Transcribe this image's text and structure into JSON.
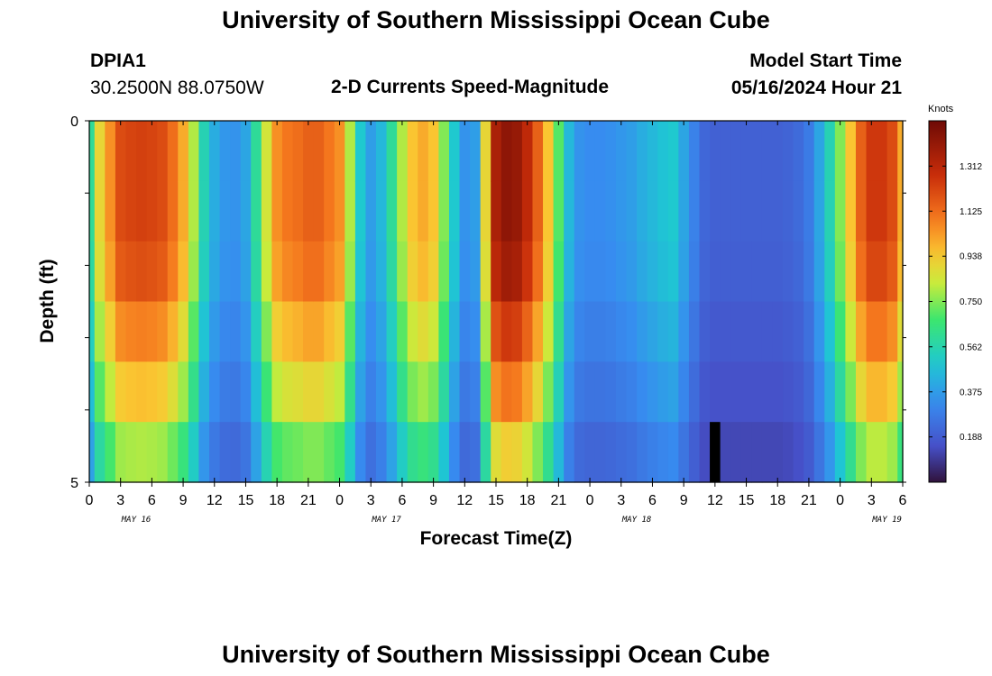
{
  "header": {
    "title": "University of Southern Mississippi Ocean Cube",
    "footer_title": "University of Southern Mississippi Ocean Cube",
    "station_id": "DPIA1",
    "station_coords": "30.2500N  88.0750W",
    "plot_subtitle": "2-D Currents Speed-Magnitude",
    "model_start_label": "Model Start Time",
    "model_start_value": "05/16/2024 Hour 21"
  },
  "chart_data": {
    "type": "heatmap",
    "title": "2-D Currents Speed-Magnitude",
    "xlabel": "Forecast Time(Z)",
    "ylabel": "Depth (ft)",
    "colorbar_label": "Knots",
    "colorbar_ticks": [
      "1.312",
      "1.125",
      "0.938",
      "0.750",
      "0.562",
      "0.375",
      "0.188"
    ],
    "colorbar_tick_values": [
      1.312,
      1.125,
      0.938,
      0.75,
      0.562,
      0.375,
      0.188
    ],
    "value_range": [
      0.0,
      1.5
    ],
    "x_tick_labels": [
      "0",
      "3",
      "6",
      "9",
      "12",
      "15",
      "18",
      "21",
      "0",
      "3",
      "6",
      "9",
      "12",
      "15",
      "18",
      "21",
      "0",
      "3",
      "6",
      "9",
      "12",
      "15",
      "18",
      "21",
      "0",
      "3",
      "6"
    ],
    "day_labels": [
      {
        "label": "MAY 16",
        "hour": 4.5
      },
      {
        "label": "MAY 17",
        "hour": 28.5
      },
      {
        "label": "MAY 18",
        "hour": 52.5
      },
      {
        "label": "MAY 19",
        "hour": 76.5
      }
    ],
    "x_range_hours": [
      0,
      78
    ],
    "y_tick_labels": [
      "0",
      "5"
    ],
    "ylim": [
      0,
      5
    ],
    "depth_layers": 5,
    "hours": [
      0,
      1,
      2,
      3,
      4,
      5,
      6,
      7,
      8,
      9,
      10,
      11,
      12,
      13,
      14,
      15,
      16,
      17,
      18,
      19,
      20,
      21,
      22,
      23,
      24,
      25,
      26,
      27,
      28,
      29,
      30,
      31,
      32,
      33,
      34,
      35,
      36,
      37,
      38,
      39,
      40,
      41,
      42,
      43,
      44,
      45,
      46,
      47,
      48,
      49,
      50,
      51,
      52,
      53,
      54,
      55,
      56,
      57,
      58,
      59,
      60,
      61,
      62,
      63,
      64,
      65,
      66,
      67,
      68,
      69,
      70,
      71,
      72,
      73,
      74,
      75,
      76,
      77,
      78
    ],
    "surface_speed": [
      0.6,
      0.9,
      1.05,
      1.2,
      1.22,
      1.23,
      1.22,
      1.2,
      1.12,
      1.0,
      0.8,
      0.55,
      0.42,
      0.36,
      0.35,
      0.4,
      0.6,
      0.85,
      1.05,
      1.1,
      1.12,
      1.15,
      1.15,
      1.1,
      1.05,
      0.8,
      0.5,
      0.38,
      0.45,
      0.6,
      0.8,
      0.95,
      1.0,
      0.95,
      0.75,
      0.5,
      0.35,
      0.38,
      0.9,
      1.35,
      1.42,
      1.4,
      1.3,
      1.15,
      0.95,
      0.7,
      0.45,
      0.35,
      0.33,
      0.33,
      0.34,
      0.36,
      0.38,
      0.42,
      0.45,
      0.48,
      0.5,
      0.4,
      0.3,
      0.22,
      0.2,
      0.2,
      0.2,
      0.2,
      0.2,
      0.2,
      0.2,
      0.21,
      0.23,
      0.28,
      0.4,
      0.55,
      0.75,
      0.95,
      1.15,
      1.25,
      1.25,
      1.2,
      1.0
    ],
    "layer_factors": [
      1.0,
      1.0,
      0.97,
      0.88,
      0.78,
      0.65
    ],
    "notes_special_cell": {
      "hour": 60,
      "layer": 5,
      "value": 0.0
    }
  }
}
